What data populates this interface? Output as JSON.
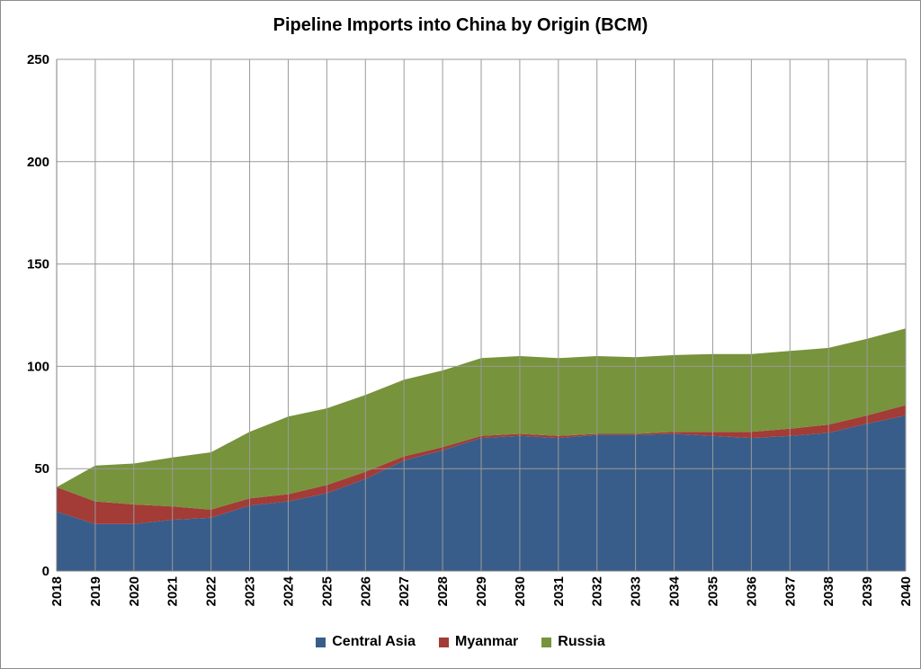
{
  "chart_data": {
    "type": "area",
    "stacked": true,
    "title": "Pipeline Imports into China by Origin (BCM)",
    "xlabel": "",
    "ylabel": "",
    "ylim": [
      0,
      250
    ],
    "yticks": [
      0,
      50,
      100,
      150,
      200,
      250
    ],
    "grid": true,
    "legend_position": "bottom",
    "x": [
      "2018",
      "2019",
      "2020",
      "2021",
      "2022",
      "2023",
      "2024",
      "2025",
      "2026",
      "2027",
      "2028",
      "2029",
      "2030",
      "2031",
      "2032",
      "2033",
      "2034",
      "2035",
      "2036",
      "2037",
      "2038",
      "2039",
      "2040"
    ],
    "series": [
      {
        "name": "Central Asia",
        "color": "#385d8a",
        "values": [
          29,
          23,
          23,
          25,
          26,
          32,
          34,
          38,
          45,
          54,
          59,
          65,
          66,
          65,
          66.5,
          66.5,
          67,
          66,
          65,
          66,
          67.5,
          72,
          76
        ]
      },
      {
        "name": "Myanmar",
        "color": "#a33b36",
        "values": [
          12,
          11,
          9.5,
          6.5,
          4,
          3.5,
          3.5,
          4,
          3.5,
          2,
          1.5,
          1,
          1,
          1,
          0.5,
          0.5,
          1,
          2,
          3,
          3.5,
          4,
          4,
          5
        ]
      },
      {
        "name": "Russia",
        "color": "#77933c",
        "values": [
          0,
          17.5,
          20,
          24,
          28,
          32.5,
          38,
          37.5,
          37.5,
          37.5,
          37.5,
          38,
          38,
          38,
          38,
          37.5,
          37.5,
          38,
          38,
          38,
          37.5,
          37.5,
          37.5
        ]
      }
    ]
  }
}
